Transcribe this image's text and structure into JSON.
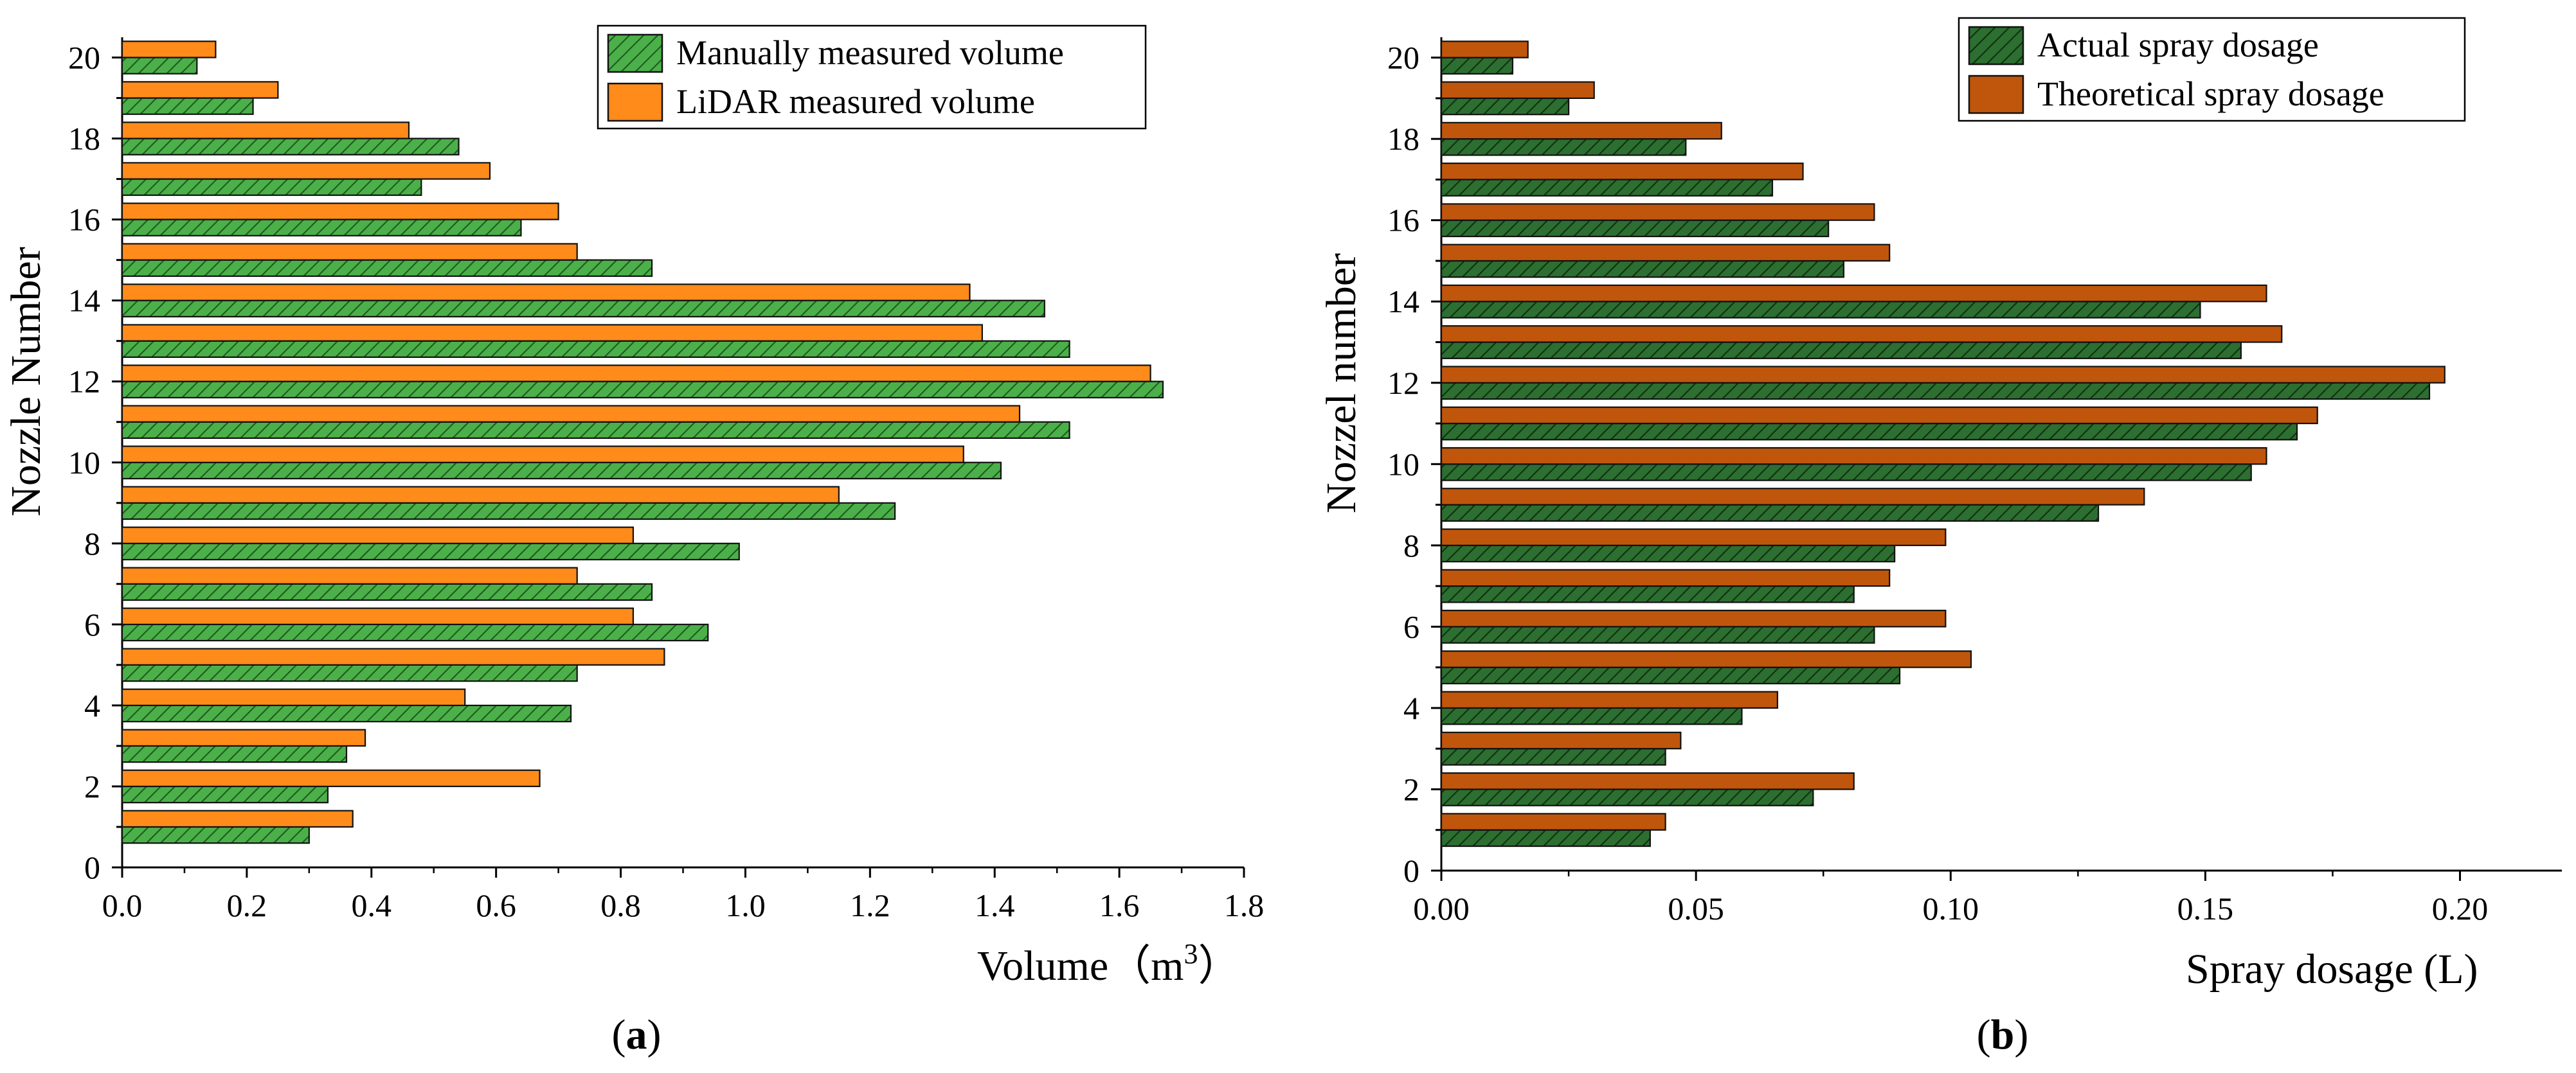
{
  "chart_data": [
    {
      "type": "bar",
      "panel_label": "a",
      "xlabel": "Volume（m",
      "xlabel_sup": "3",
      "xlabel_close": "）",
      "ylabel": "Nozzle Number",
      "xlim": [
        0,
        1.8
      ],
      "xticks": [
        "0.0",
        "0.2",
        "0.4",
        "0.6",
        "0.8",
        "1.0",
        "1.2",
        "1.4",
        "1.6",
        "1.8"
      ],
      "xtick_values": [
        0,
        0.2,
        0.4,
        0.6,
        0.8,
        1.0,
        1.2,
        1.4,
        1.6,
        1.8
      ],
      "ylim": [
        0,
        20.5
      ],
      "yticks": [
        "0",
        "2",
        "4",
        "6",
        "8",
        "10",
        "12",
        "14",
        "16",
        "18",
        "20"
      ],
      "categories": [
        1,
        2,
        3,
        4,
        5,
        6,
        7,
        8,
        9,
        10,
        11,
        12,
        13,
        14,
        15,
        16,
        17,
        18,
        19,
        20
      ],
      "legend_position": "top-right",
      "series": [
        {
          "name": "Manually measured volume",
          "color": "#4cb04a",
          "hatch": true,
          "values": [
            0.3,
            0.33,
            0.36,
            0.72,
            0.73,
            0.94,
            0.85,
            0.99,
            1.24,
            1.41,
            1.52,
            1.67,
            1.52,
            1.48,
            0.85,
            0.64,
            0.48,
            0.54,
            0.21,
            0.12
          ]
        },
        {
          "name": "LiDAR measured volume",
          "color": "#ff8b1a",
          "hatch": false,
          "values": [
            0.37,
            0.67,
            0.39,
            0.55,
            0.87,
            0.82,
            0.73,
            0.82,
            1.15,
            1.35,
            1.44,
            1.65,
            1.38,
            1.36,
            0.73,
            0.7,
            0.59,
            0.46,
            0.25,
            0.15
          ]
        }
      ]
    },
    {
      "type": "bar",
      "panel_label": "b",
      "xlabel": "Spray dosage (L)",
      "ylabel": "Nozzel number",
      "xlim": [
        0,
        0.22
      ],
      "xticks": [
        "0.00",
        "0.05",
        "0.10",
        "0.15",
        "0.20"
      ],
      "xtick_values": [
        0,
        0.05,
        0.1,
        0.15,
        0.2
      ],
      "ylim": [
        0,
        20.5
      ],
      "yticks": [
        "0",
        "2",
        "4",
        "6",
        "8",
        "10",
        "12",
        "14",
        "16",
        "18",
        "20"
      ],
      "categories": [
        1,
        2,
        3,
        4,
        5,
        6,
        7,
        8,
        9,
        10,
        11,
        12,
        13,
        14,
        15,
        16,
        17,
        18,
        19,
        20
      ],
      "legend_position": "top-right",
      "series": [
        {
          "name": "Actual spray dosage",
          "color": "#2d6e31",
          "hatch": true,
          "values": [
            0.041,
            0.073,
            0.044,
            0.059,
            0.09,
            0.085,
            0.081,
            0.089,
            0.129,
            0.159,
            0.168,
            0.194,
            0.157,
            0.149,
            0.079,
            0.076,
            0.065,
            0.048,
            0.025,
            0.014
          ]
        },
        {
          "name": "Theoretical spray dosage",
          "color": "#c0560b",
          "hatch": false,
          "values": [
            0.044,
            0.081,
            0.047,
            0.066,
            0.104,
            0.099,
            0.088,
            0.099,
            0.138,
            0.162,
            0.172,
            0.197,
            0.165,
            0.162,
            0.088,
            0.085,
            0.071,
            0.055,
            0.03,
            0.017
          ]
        }
      ]
    }
  ]
}
